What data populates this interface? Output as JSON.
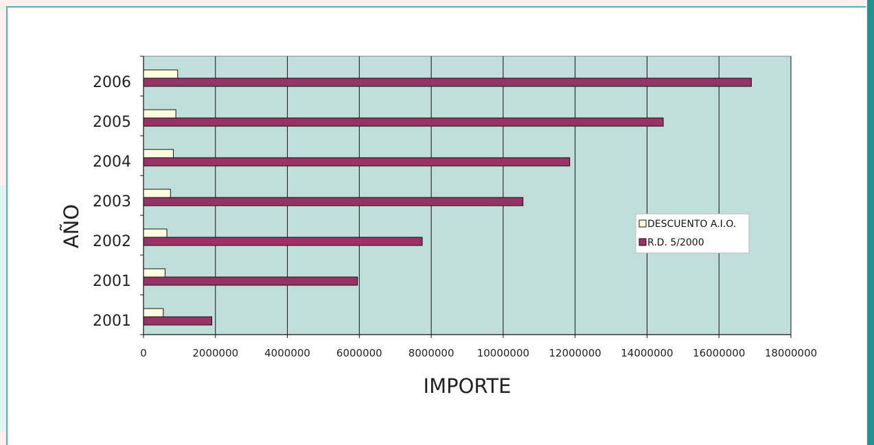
{
  "chart_data": {
    "type": "bar",
    "orientation": "horizontal",
    "categories": [
      "2001",
      "2001",
      "2002",
      "2003",
      "2004",
      "2005",
      "2006"
    ],
    "series": [
      {
        "name": "DESCUENTO A.I.O.",
        "values": [
          550000,
          600000,
          650000,
          750000,
          830000,
          900000,
          950000
        ],
        "color": "#fffde0"
      },
      {
        "name": "R.D. 5/2000",
        "values": [
          1900000,
          5950000,
          7750000,
          10550000,
          11850000,
          14450000,
          16900000
        ],
        "color": "#993366"
      }
    ],
    "title": "",
    "xlabel": "IMPORTE",
    "ylabel": "AÑO",
    "xlim": [
      0,
      18000000
    ],
    "xticks": [
      "0",
      "2000000",
      "4000000",
      "6000000",
      "8000000",
      "10000000",
      "12000000",
      "14000000",
      "16000000",
      "18000000"
    ],
    "plot_background": "#c0dfdb",
    "grid": "vertical",
    "legend_position": "right"
  }
}
